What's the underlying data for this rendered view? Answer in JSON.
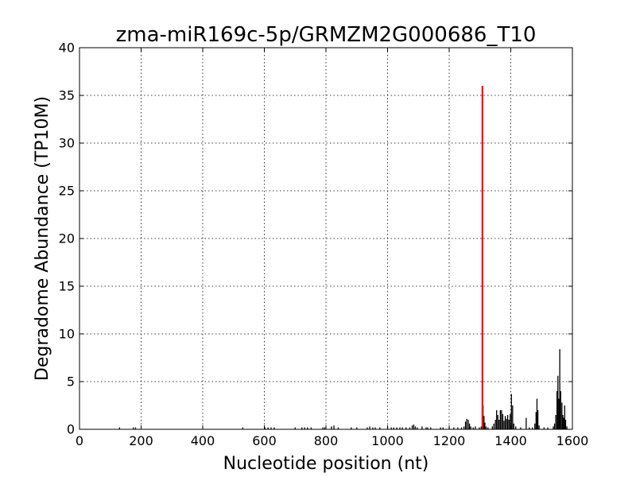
{
  "chart_data": {
    "type": "bar",
    "title": "zma-miR169c-5p/GRMZM2G000686_T10",
    "xlabel": "Nucleotide position (nt)",
    "ylabel": "Degradome Abundance (TP10M)",
    "xlim": [
      0,
      1600
    ],
    "ylim": [
      0,
      40
    ],
    "xticks": [
      0,
      200,
      400,
      600,
      800,
      1000,
      1200,
      1400,
      1600
    ],
    "yticks": [
      0,
      5,
      10,
      15,
      20,
      25,
      30,
      35,
      40
    ],
    "grid": true,
    "colors": {
      "background": "#bfbfbf",
      "series": "#000000",
      "highlight": "#ff0000"
    },
    "series": [
      {
        "values": [
          [
            130,
            0.2
          ],
          [
            175,
            0.2
          ],
          [
            182,
            0.2
          ],
          [
            530,
            0.2
          ],
          [
            602,
            0.2
          ],
          [
            612,
            0.2
          ],
          [
            622,
            0.2
          ],
          [
            632,
            0.2
          ],
          [
            700,
            0.2
          ],
          [
            722,
            0.2
          ],
          [
            731,
            0.2
          ],
          [
            740,
            0.2
          ],
          [
            752,
            0.2
          ],
          [
            790,
            0.2
          ],
          [
            796,
            0.2
          ],
          [
            818,
            0.3
          ],
          [
            826,
            0.4
          ],
          [
            840,
            0.2
          ],
          [
            882,
            0.2
          ],
          [
            900,
            0.2
          ],
          [
            934,
            0.2
          ],
          [
            942,
            0.3
          ],
          [
            952,
            0.2
          ],
          [
            960,
            0.2
          ],
          [
            975,
            0.2
          ],
          [
            1000,
            0.3
          ],
          [
            1012,
            0.2
          ],
          [
            1020,
            0.2
          ],
          [
            1030,
            0.2
          ],
          [
            1040,
            0.2
          ],
          [
            1048,
            0.2
          ],
          [
            1060,
            0.2
          ],
          [
            1072,
            0.2
          ],
          [
            1080,
            0.4
          ],
          [
            1085,
            0.5
          ],
          [
            1090,
            0.3
          ],
          [
            1096,
            0.2
          ],
          [
            1112,
            0.3
          ],
          [
            1125,
            0.2
          ],
          [
            1130,
            0.2
          ],
          [
            1140,
            0.2
          ],
          [
            1172,
            0.2
          ],
          [
            1180,
            0.2
          ],
          [
            1200,
            0.2
          ],
          [
            1215,
            0.2
          ],
          [
            1228,
            0.2
          ],
          [
            1240,
            0.2
          ],
          [
            1248,
            0.3
          ],
          [
            1253,
            0.8
          ],
          [
            1257,
            1.1
          ],
          [
            1262,
            1.0
          ],
          [
            1266,
            0.6
          ],
          [
            1270,
            0.3
          ],
          [
            1278,
            0.2
          ],
          [
            1285,
            0.3
          ],
          [
            1298,
            0.2
          ],
          [
            1304,
            0.3
          ],
          [
            1310,
            2.5
          ],
          [
            1313,
            1.4
          ],
          [
            1316,
            0.7
          ],
          [
            1320,
            0.3
          ],
          [
            1326,
            0.2
          ],
          [
            1340,
            0.3
          ],
          [
            1345,
            0.6
          ],
          [
            1350,
            1.0
          ],
          [
            1354,
            2.0
          ],
          [
            1358,
            1.5
          ],
          [
            1362,
            1.0
          ],
          [
            1366,
            2.0
          ],
          [
            1370,
            2.0
          ],
          [
            1374,
            1.6
          ],
          [
            1378,
            0.9
          ],
          [
            1382,
            1.4
          ],
          [
            1386,
            1.1
          ],
          [
            1390,
            1.5
          ],
          [
            1394,
            1.0
          ],
          [
            1398,
            1.6
          ],
          [
            1402,
            3.7
          ],
          [
            1406,
            2.5
          ],
          [
            1410,
            0.6
          ],
          [
            1416,
            0.3
          ],
          [
            1432,
            0.2
          ],
          [
            1450,
            1.2
          ],
          [
            1460,
            0.2
          ],
          [
            1470,
            0.2
          ],
          [
            1478,
            0.6
          ],
          [
            1482,
            1.8
          ],
          [
            1485,
            3.2
          ],
          [
            1488,
            2.0
          ],
          [
            1492,
            0.4
          ],
          [
            1508,
            0.2
          ],
          [
            1520,
            0.2
          ],
          [
            1538,
            0.3
          ],
          [
            1542,
            0.6
          ],
          [
            1546,
            1.5
          ],
          [
            1550,
            4.0
          ],
          [
            1553,
            5.6
          ],
          [
            1556,
            3.2
          ],
          [
            1559,
            8.4
          ],
          [
            1562,
            4.0
          ],
          [
            1566,
            2.8
          ],
          [
            1569,
            1.5
          ],
          [
            1572,
            1.2
          ],
          [
            1575,
            2.5
          ],
          [
            1578,
            1.0
          ],
          [
            1582,
            0.3
          ]
        ]
      },
      {
        "values": [
          [
            1308,
            36
          ]
        ]
      }
    ]
  }
}
